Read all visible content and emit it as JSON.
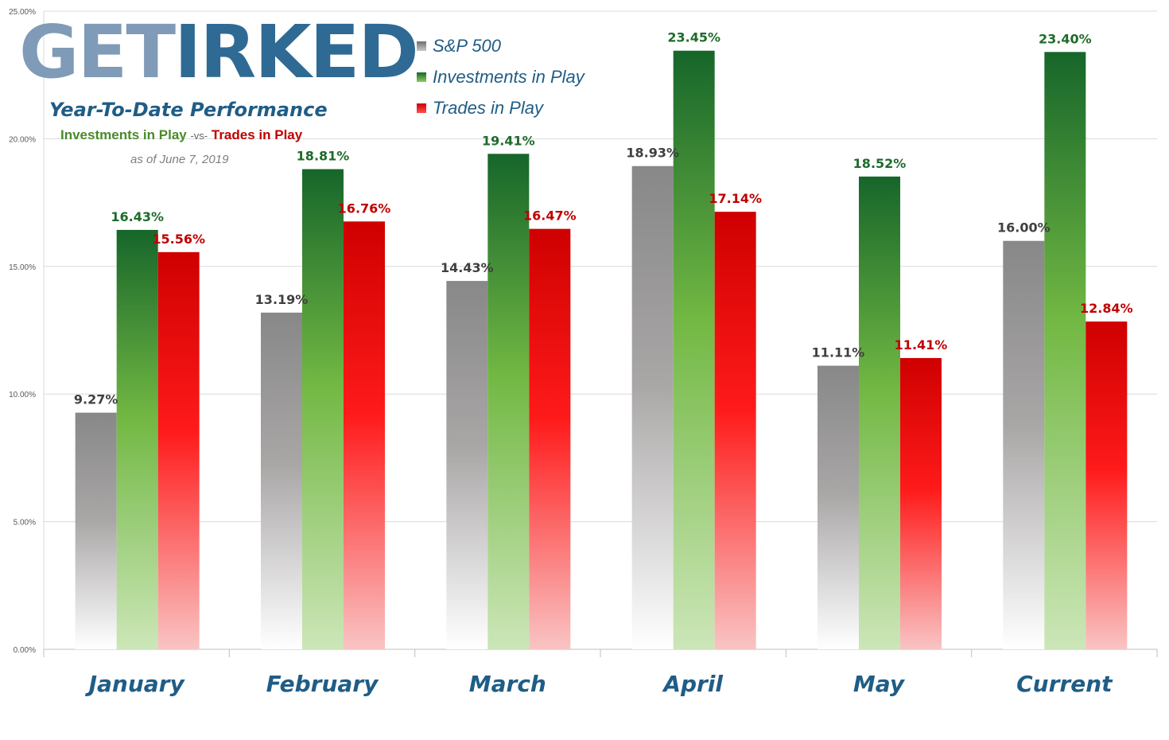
{
  "brand": {
    "get": "GET",
    "irked": "IRKED"
  },
  "header": {
    "subtitle": "Year-To-Date Performance",
    "investments_label": "Investments in Play",
    "vs_label": "-vs-",
    "trades_label": "Trades in Play",
    "as_of": "as of June 7, 2019"
  },
  "colors": {
    "sp500": "#8c8c8c",
    "investments": "#1e6b2a",
    "trades": "#d40000",
    "inv_label": "#1e6b2a",
    "trd_label": "#c00000",
    "sp_label": "#404040",
    "axis_label": "#1f5d86"
  },
  "chart_data": {
    "type": "bar",
    "title": "",
    "xlabel": "",
    "ylabel": "",
    "categories": [
      "January",
      "February",
      "March",
      "April",
      "May",
      "Current"
    ],
    "ylim": [
      0,
      25
    ],
    "yticks": [
      "0.00%",
      "5.00%",
      "10.00%",
      "15.00%",
      "20.00%",
      "25.00%"
    ],
    "grid": true,
    "legend_position": "top-center",
    "series": [
      {
        "name": "S&P 500",
        "values": [
          9.27,
          13.19,
          14.43,
          18.93,
          11.11,
          16.0
        ],
        "labels": [
          "9.27%",
          "13.19%",
          "14.43%",
          "18.93%",
          "11.11%",
          "16.00%"
        ]
      },
      {
        "name": "Investments in Play",
        "values": [
          16.43,
          18.81,
          19.41,
          23.45,
          18.52,
          23.4
        ],
        "labels": [
          "16.43%",
          "18.81%",
          "19.41%",
          "23.45%",
          "18.52%",
          "23.40%"
        ]
      },
      {
        "name": "Trades in Play",
        "values": [
          15.56,
          16.76,
          16.47,
          17.14,
          11.41,
          12.84
        ],
        "labels": [
          "15.56%",
          "16.76%",
          "16.47%",
          "17.14%",
          "11.41%",
          "12.84%"
        ]
      }
    ]
  }
}
